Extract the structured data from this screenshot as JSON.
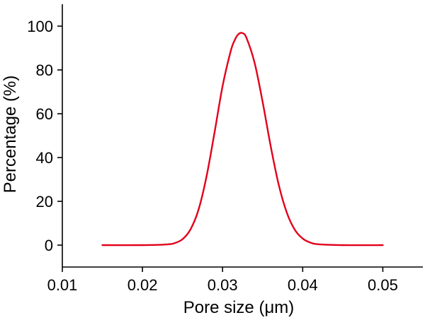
{
  "chart_data": {
    "type": "line",
    "title": "",
    "xlabel": "Pore size (μm)",
    "ylabel": "Percentage (%)",
    "xlim": [
      0.01,
      0.055
    ],
    "ylim": [
      -10,
      110
    ],
    "xticks": [
      0.01,
      0.02,
      0.03,
      0.04,
      0.05
    ],
    "xtick_labels": [
      "0.01",
      "0.02",
      "0.03",
      "0.04",
      "0.05"
    ],
    "yticks": [
      0,
      20,
      40,
      60,
      80,
      100
    ],
    "ytick_labels": [
      "0",
      "20",
      "40",
      "60",
      "80",
      "100"
    ],
    "grid": false,
    "legend": "none",
    "series": [
      {
        "color": "#e3001b",
        "x": [
          0.015,
          0.02,
          0.023,
          0.024,
          0.025,
          0.026,
          0.027,
          0.028,
          0.029,
          0.03,
          0.031,
          0.0315,
          0.032,
          0.0325,
          0.033,
          0.034,
          0.035,
          0.036,
          0.037,
          0.038,
          0.039,
          0.04,
          0.041,
          0.042,
          0.045,
          0.05
        ],
        "y": [
          0,
          0,
          0.3,
          0.9,
          2.7,
          7.2,
          16.2,
          31.4,
          51.5,
          72.6,
          88.4,
          93.5,
          96.4,
          96.8,
          94.5,
          83.2,
          65.4,
          45.3,
          27.7,
          15,
          7.1,
          3,
          1.1,
          0.4,
          0,
          0
        ]
      }
    ]
  }
}
